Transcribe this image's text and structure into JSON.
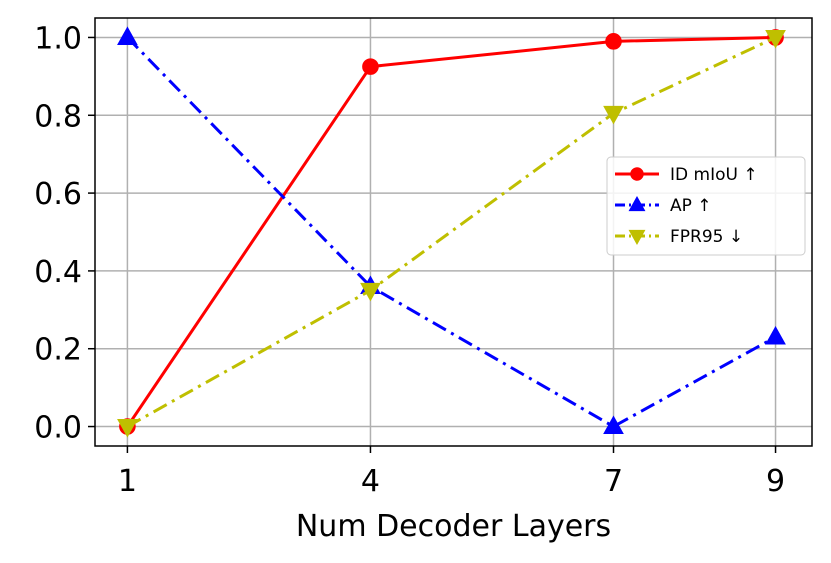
{
  "chart_data": {
    "type": "line",
    "title": "",
    "xlabel": "Num Decoder Layers",
    "ylabel": "",
    "x": [
      1,
      4,
      7,
      9
    ],
    "xlim": [
      0.6,
      9.45
    ],
    "ylim": [
      -0.05,
      1.05
    ],
    "xticks": [
      "1",
      "4",
      "7",
      "9"
    ],
    "yticks": [
      "0.0",
      "0.2",
      "0.4",
      "0.6",
      "0.8",
      "1.0"
    ],
    "grid": true,
    "legend_position": "center-right",
    "series": [
      {
        "name": "ID mIoU ↑",
        "values": [
          0.0,
          0.925,
          0.99,
          1.0
        ],
        "color": "#ff0000",
        "marker": "circle",
        "linestyle": "solid"
      },
      {
        "name": "AP ↑",
        "values": [
          1.0,
          0.36,
          0.0,
          0.23
        ],
        "color": "#0000ff",
        "marker": "triangle-up",
        "linestyle": "dashdot"
      },
      {
        "name": "FPR95 ↓",
        "values": [
          0.0,
          0.35,
          0.805,
          1.0
        ],
        "color": "#bfbf00",
        "marker": "triangle-down",
        "linestyle": "dashdot"
      }
    ]
  }
}
